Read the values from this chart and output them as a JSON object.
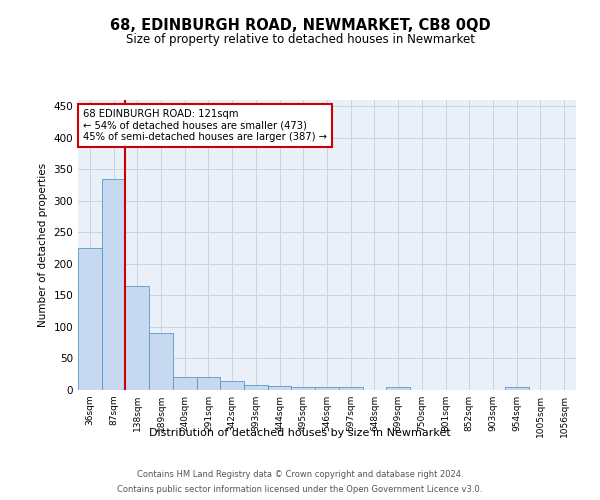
{
  "title": "68, EDINBURGH ROAD, NEWMARKET, CB8 0QD",
  "subtitle": "Size of property relative to detached houses in Newmarket",
  "xlabel": "Distribution of detached houses by size in Newmarket",
  "ylabel": "Number of detached properties",
  "categories": [
    "36sqm",
    "87sqm",
    "138sqm",
    "189sqm",
    "240sqm",
    "291sqm",
    "342sqm",
    "393sqm",
    "444sqm",
    "495sqm",
    "546sqm",
    "597sqm",
    "648sqm",
    "699sqm",
    "750sqm",
    "801sqm",
    "852sqm",
    "903sqm",
    "954sqm",
    "1005sqm",
    "1056sqm"
  ],
  "values": [
    225,
    335,
    165,
    90,
    21,
    21,
    14,
    8,
    7,
    5,
    4,
    4,
    0,
    5,
    0,
    0,
    0,
    0,
    4,
    0,
    0
  ],
  "bar_color": "#c6d9f0",
  "bar_edge_color": "#5a96c8",
  "vline_color": "#cc0000",
  "annotation_text": "68 EDINBURGH ROAD: 121sqm\n← 54% of detached houses are smaller (473)\n45% of semi-detached houses are larger (387) →",
  "annotation_box_facecolor": "#ffffff",
  "annotation_box_edgecolor": "#cc0000",
  "ylim": [
    0,
    460
  ],
  "yticks": [
    0,
    50,
    100,
    150,
    200,
    250,
    300,
    350,
    400,
    450
  ],
  "grid_color": "#c8d4e3",
  "background_color": "#eaf0f8",
  "footnote_line1": "Contains HM Land Registry data © Crown copyright and database right 2024.",
  "footnote_line2": "Contains public sector information licensed under the Open Government Licence v3.0."
}
